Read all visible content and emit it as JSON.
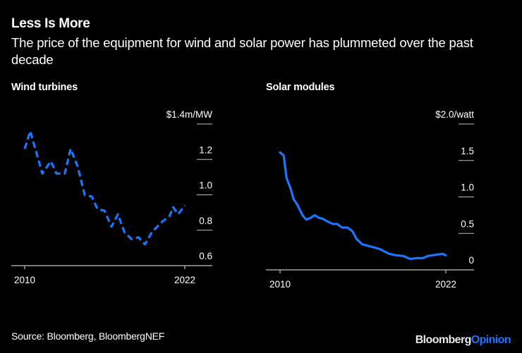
{
  "title": "Less Is More",
  "subtitle": "The price of the equipment for wind and solar power has plummeted over the past decade",
  "source": "Source: Bloomberg, BloombergNEF",
  "brand": {
    "part1": "Bloomberg",
    "part2": "Opinion"
  },
  "colors": {
    "background": "#000000",
    "line": "#1a75ff",
    "text": "#ffffff",
    "axis": "#bfbfbf"
  },
  "chart_data": [
    {
      "type": "line",
      "title": "Wind turbines",
      "line_style": "dashed",
      "unit_label": "$1.4m/MW",
      "ylim": [
        0.6,
        1.4
      ],
      "yticks": [
        1.4,
        1.2,
        1.0,
        0.8,
        0.6
      ],
      "ytick_labels": [
        "$1.4m/MW",
        "1.2",
        "1.0",
        "0.8",
        "0.6"
      ],
      "xlim": [
        2010,
        2022
      ],
      "xticks": [
        2010,
        2022
      ],
      "xtick_labels": [
        "2010",
        "2022"
      ],
      "x": [
        2010.0,
        2010.42,
        2011.32,
        2011.96,
        2012.38,
        2013.01,
        2013.44,
        2013.97,
        2014.5,
        2015.03,
        2015.45,
        2015.98,
        2016.51,
        2016.99,
        2017.47,
        2018.0,
        2018.53,
        2019.01,
        2019.54,
        2020.33,
        2020.86,
        2021.13,
        2021.5,
        2022.0
      ],
      "values": [
        1.26,
        1.36,
        1.12,
        1.19,
        1.12,
        1.12,
        1.26,
        1.16,
        1.0,
        0.99,
        0.92,
        0.91,
        0.82,
        0.89,
        0.79,
        0.75,
        0.76,
        0.72,
        0.79,
        0.85,
        0.88,
        0.93,
        0.89,
        0.94
      ]
    },
    {
      "type": "line",
      "title": "Solar modules",
      "line_style": "solid",
      "unit_label": "$2.0/watt",
      "ylim": [
        0,
        2.0
      ],
      "yticks": [
        2.0,
        1.5,
        1.0,
        0.5,
        0
      ],
      "ytick_labels": [
        "$2.0/watt",
        "1.5",
        "1.0",
        "0.5",
        "0"
      ],
      "xlim": [
        2010,
        2022
      ],
      "xticks": [
        2010,
        2022
      ],
      "xtick_labels": [
        "2010",
        "2022"
      ],
      "x": [
        2010.0,
        2010.26,
        2010.47,
        2010.77,
        2010.98,
        2011.23,
        2011.63,
        2011.89,
        2012.19,
        2012.5,
        2012.85,
        2013.11,
        2013.46,
        2013.82,
        2014.13,
        2014.49,
        2014.89,
        2015.24,
        2015.55,
        2015.96,
        2016.77,
        2017.28,
        2017.89,
        2018.4,
        2018.91,
        2019.42,
        2019.83,
        2020.34,
        2020.7,
        2021.36,
        2021.77,
        2022.0
      ],
      "values": [
        1.61,
        1.57,
        1.26,
        1.11,
        0.97,
        0.9,
        0.75,
        0.69,
        0.71,
        0.75,
        0.71,
        0.7,
        0.66,
        0.63,
        0.63,
        0.58,
        0.58,
        0.53,
        0.42,
        0.35,
        0.31,
        0.28,
        0.22,
        0.2,
        0.19,
        0.15,
        0.16,
        0.16,
        0.19,
        0.21,
        0.22,
        0.2
      ]
    }
  ]
}
